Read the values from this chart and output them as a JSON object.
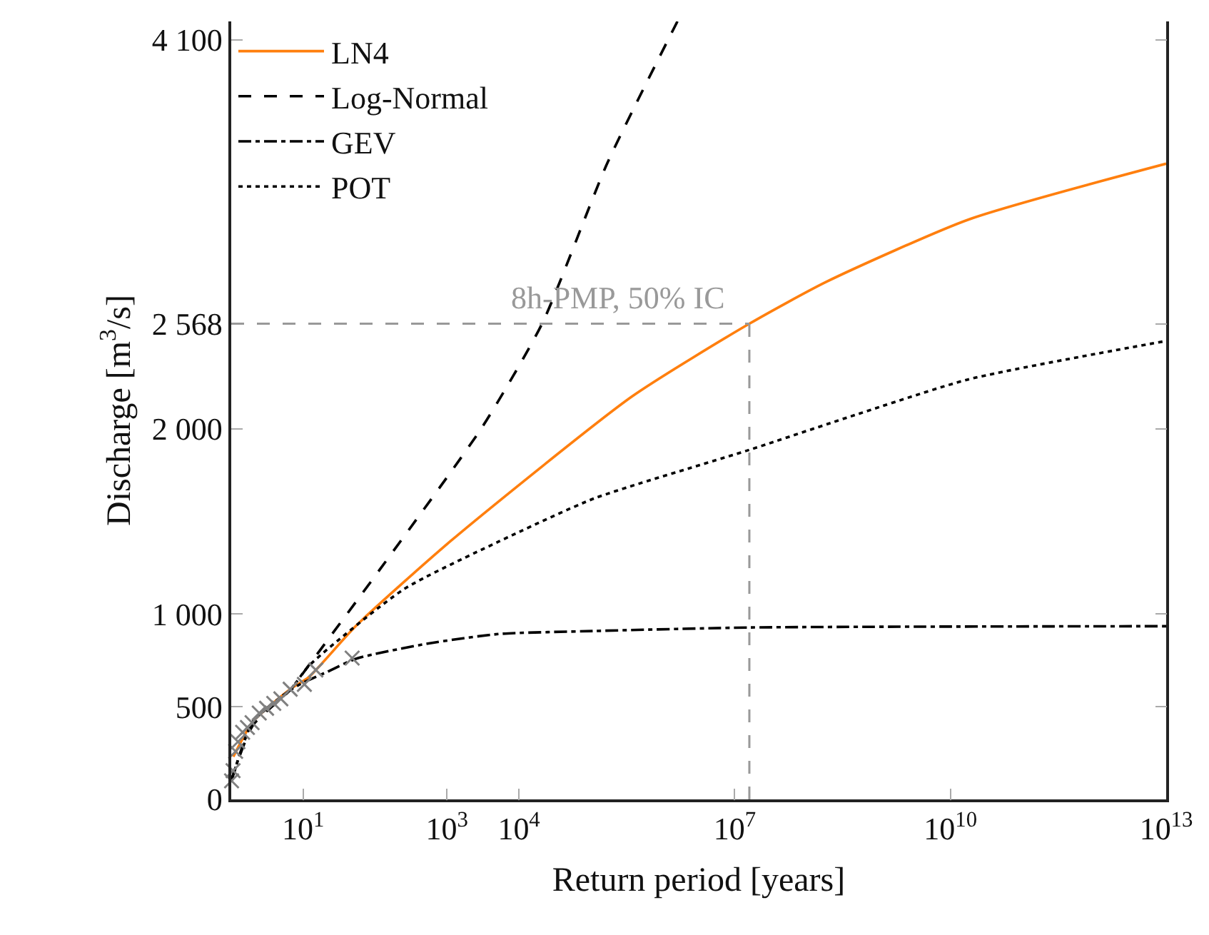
{
  "chart_data": {
    "type": "line",
    "xlabel": "Return period [years]",
    "ylabel": "Discharge [m$^{3}$/s]",
    "log": "x",
    "xlim": [
      1,
      10000000000000.0
    ],
    "ylim": [
      0,
      4200
    ],
    "xticks": [
      {
        "value": 10,
        "label": "10$^{1}$"
      },
      {
        "value": 1000,
        "label": "10$^{3}$"
      },
      {
        "value": 10000,
        "label": "10$^{4}$"
      },
      {
        "value": 10000000,
        "label": "10$^{7}$"
      },
      {
        "value": 10000000000,
        "label": "10$^{10}$"
      },
      {
        "value": 10000000000000,
        "label": "10$^{13}$"
      }
    ],
    "yticks": [
      0,
      500,
      {
        "value": 1000,
        "label": "1 000"
      },
      {
        "value": 2000,
        "label": "2 000"
      },
      {
        "value": 2568,
        "label": "2 568"
      },
      {
        "value": 4100,
        "label": "4 100"
      }
    ],
    "legend": "top left",
    "series": [
      {
        "name": "LN4",
        "color": "#ff7f0e",
        "line_style": "solid",
        "x": [
          1.07,
          2,
          6.6,
          12,
          55,
          1150,
          370000,
          16000000,
          190000000,
          18000000000,
          10000000000000
        ],
        "values": [
          230,
          420,
          595,
          660,
          939,
          1398,
          2174,
          2568,
          2795,
          3131,
          3432
        ]
      },
      {
        "name": "Log-Normal",
        "color": "#000000",
        "line_style": "dashed",
        "x": [
          1.01,
          2,
          6.6,
          12,
          117,
          3100,
          21000,
          170000,
          1600000
        ],
        "values": [
          110,
          400,
          590,
          724,
          1242,
          2011,
          2568,
          3436,
          4200
        ]
      },
      {
        "name": "GEV",
        "color": "#000000",
        "line_style": "dashdot",
        "x": [
          1.01,
          2,
          6.6,
          10,
          22,
          55,
          537,
          5250,
          110000,
          16000000,
          10000000000000
        ],
        "values": [
          100,
          420,
          590,
          630,
          690,
          760,
          841,
          893,
          909,
          928,
          935
        ]
      },
      {
        "name": "POT",
        "color": "#000000",
        "line_style": "dotted",
        "x": [
          1.01,
          2,
          6.6,
          12,
          250,
          5250,
          110000,
          16000000,
          470000000,
          18000000000,
          10000000000000
        ],
        "values": [
          100,
          420,
          590,
          721,
          1134,
          1392,
          1624,
          1887,
          2075,
          2268,
          2475
        ]
      },
      {
        "type": "scatter",
        "marker": "cross",
        "color": "#808080",
        "x": [
          1.01,
          1.06,
          1.15,
          1.24,
          1.44,
          1.68,
          1.95,
          2.45,
          3.1,
          3.9,
          4.9,
          6.6,
          10.4,
          15,
          48
        ],
        "values": [
          100,
          155,
          259,
          311,
          362,
          388,
          414,
          466,
          492,
          518,
          543,
          595,
          621,
          699,
          763
        ]
      }
    ],
    "ref_lines": [
      {
        "axis": "y",
        "value": 2568,
        "label": "8h-PMP, 50% IC",
        "color": "#999999",
        "line_style": "dashed"
      },
      {
        "axis": "x",
        "value": 16000000,
        "color": "#999999",
        "line_style": "dashed"
      }
    ]
  }
}
